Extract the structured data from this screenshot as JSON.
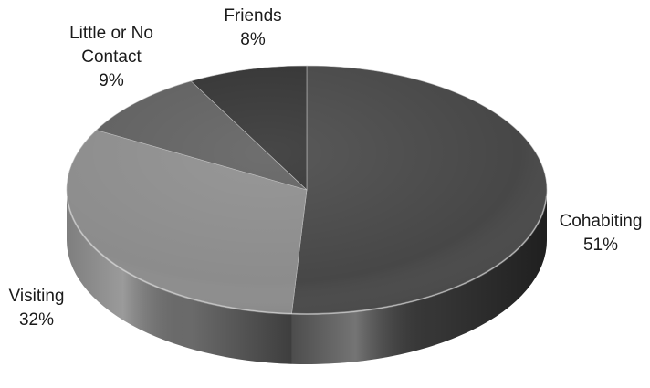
{
  "chart_data": {
    "type": "pie",
    "style": "3d",
    "title": "",
    "legend": "none",
    "start_angle_deg": 90,
    "direction": "clockwise",
    "slices": [
      {
        "label": "Cohabiting",
        "value": 51,
        "value_label": "51%",
        "color": "#474747"
      },
      {
        "label": "Visiting",
        "value": 32,
        "value_label": "32%",
        "color": "#8c8c8c"
      },
      {
        "label": "Little or No Contact",
        "value": 9,
        "value_label": "9%",
        "color": "#5f5f5f"
      },
      {
        "label": "Friends",
        "value": 8,
        "value_label": "8%",
        "color": "#333333"
      }
    ]
  }
}
